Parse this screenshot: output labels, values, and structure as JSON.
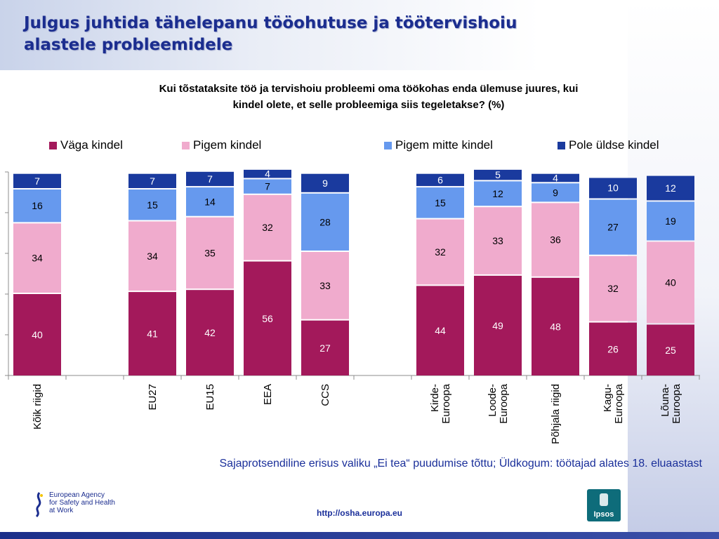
{
  "header": {
    "title_line1": "Julgus juhtida tähelepanu tööohutuse ja töötervishoiu",
    "title_line2": "alastele probleemidele"
  },
  "question": {
    "line1": "Kui tõstataksite töö ja tervishoiu probleemi oma töökohas enda ülemuse juures, kui",
    "line2": "kindel olete, et selle probleemiga siis tegeletakse? (%)"
  },
  "chart_data": {
    "type": "bar",
    "stacked": true,
    "title": "",
    "xlabel": "",
    "ylabel": "",
    "ylim": [
      0,
      100
    ],
    "legend_position": "top",
    "categories": [
      [
        "Kõik riigid"
      ],
      [
        "EU27"
      ],
      [
        "EU15"
      ],
      [
        "EEA"
      ],
      [
        "CCS"
      ],
      [
        "Kirde-",
        "Euroopa"
      ],
      [
        "Loode-",
        "Euroopa"
      ],
      [
        "Põhjala riigid"
      ],
      [
        "Kagu-",
        "Euroopa"
      ],
      [
        "Lõuna-",
        "Euroopa"
      ]
    ],
    "series": [
      {
        "name": "Väga kindel",
        "color": "#a3195b",
        "values": [
          40,
          41,
          42,
          56,
          27,
          44,
          49,
          48,
          26,
          25
        ]
      },
      {
        "name": "Pigem kindel",
        "color": "#f0abcd",
        "values": [
          34,
          34,
          35,
          32,
          33,
          32,
          33,
          36,
          32,
          40
        ]
      },
      {
        "name": "Pigem mitte kindel",
        "color": "#6699ee",
        "values": [
          16,
          15,
          14,
          7,
          28,
          15,
          12,
          9,
          27,
          19
        ]
      },
      {
        "name": "Pole üldse kindel",
        "color": "#1a3a9e",
        "values": [
          7,
          7,
          7,
          4,
          9,
          6,
          5,
          4,
          10,
          12
        ]
      }
    ]
  },
  "footnote": "Sajaprotsendiline erisus valiku „Ei tea“ puudumise tõttu;  Üldkogum: töötajad alates 18. eluaastast",
  "url": "http://osha.europa.eu",
  "logos": {
    "agency_line1": "European Agency",
    "agency_line2": "for Safety and Health",
    "agency_line3": "at Work",
    "ipsos": "Ipsos"
  }
}
